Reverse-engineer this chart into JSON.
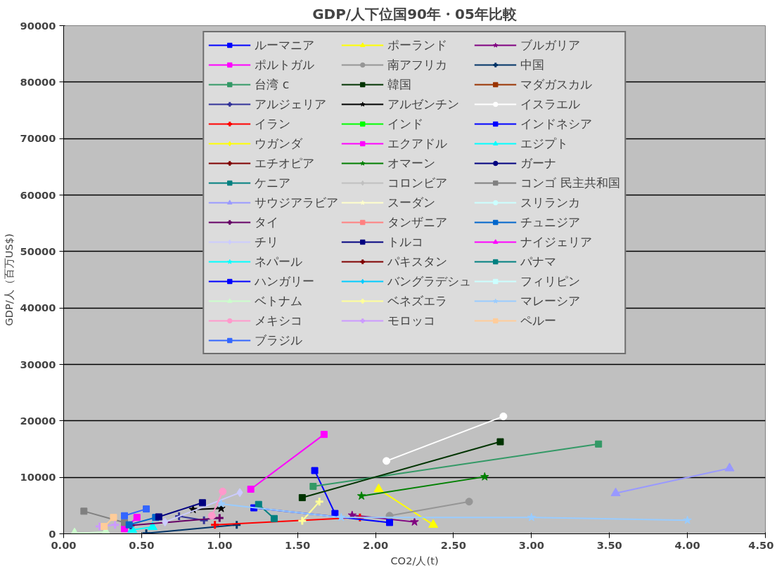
{
  "chart_data": {
    "type": "line",
    "title": "GDP/人下位国90年・05年比較",
    "xlabel": "CO2/人(t)",
    "ylabel": "GDP/人（百万US$)",
    "xlim": [
      0,
      4.5
    ],
    "ylim": [
      0,
      90000
    ],
    "xticks": [
      {
        "value": 0,
        "label": "0.00"
      },
      {
        "value": 0.5,
        "label": "0.50"
      },
      {
        "value": 1,
        "label": "1.00"
      },
      {
        "value": 1.5,
        "label": "1.50"
      },
      {
        "value": 2,
        "label": "2.00"
      },
      {
        "value": 2.5,
        "label": "2.50"
      },
      {
        "value": 3,
        "label": "3.00"
      },
      {
        "value": 3.5,
        "label": "3.50"
      },
      {
        "value": 4,
        "label": "4.00"
      },
      {
        "value": 4.5,
        "label": "4.50"
      }
    ],
    "yticks": [
      0,
      10000,
      20000,
      30000,
      40000,
      50000,
      60000,
      70000,
      80000,
      90000
    ],
    "grid": "y",
    "legend": "top",
    "series": [
      {
        "name": "ルーマニア",
        "color": "#0000ff",
        "marker": "square",
        "x": [
          1.61,
          1.74
        ],
        "values": [
          11200,
          3600
        ]
      },
      {
        "name": "ポーランド",
        "color": "#ffff00",
        "marker": "triangle",
        "x": [
          2.02,
          2.37
        ],
        "values": [
          7900,
          1600
        ]
      },
      {
        "name": "ブルガリア",
        "color": "#800080",
        "marker": "star",
        "x": [
          1.85,
          2.25
        ],
        "values": [
          3300,
          2100
        ]
      },
      {
        "name": "ポルトガル",
        "color": "#ff00ff",
        "marker": "square",
        "x": [
          1.2,
          1.67
        ],
        "values": [
          7900,
          17600
        ]
      },
      {
        "name": "南アフリカ",
        "color": "#969696",
        "marker": "circle",
        "x": [
          2.09,
          2.6
        ],
        "values": [
          3200,
          5700
        ]
      },
      {
        "name": "中国",
        "color": "#003366",
        "marker": "cross",
        "x": [
          0.53,
          1.11
        ],
        "values": [
          100,
          1600
        ]
      },
      {
        "name": "台湾 c",
        "color": "#339966",
        "marker": "square",
        "x": [
          1.6,
          3.43
        ],
        "values": [
          8400,
          15900
        ]
      },
      {
        "name": "韓国",
        "color": "#003300",
        "marker": "square",
        "x": [
          1.53,
          2.8
        ],
        "values": [
          6400,
          16300
        ]
      },
      {
        "name": "マダガスカル",
        "color": "#993300",
        "marker": "square",
        "x": [
          null,
          null
        ],
        "values": [
          null,
          null
        ]
      },
      {
        "name": "アルジェリア",
        "color": "#333399",
        "marker": "cross",
        "x": [
          0.74,
          0.9
        ],
        "values": [
          3100,
          2400
        ]
      },
      {
        "name": "アルゼンチン",
        "color": "#000000",
        "marker": "star",
        "x": [
          0.83,
          1.01
        ],
        "values": [
          4300,
          4500
        ]
      },
      {
        "name": "イスラエル",
        "color": "#ffffff",
        "marker": "circle",
        "x": [
          2.07,
          2.82
        ],
        "values": [
          12900,
          20800
        ]
      },
      {
        "name": "イラン",
        "color": "#ff0000",
        "marker": "cross",
        "x": [
          0.97,
          1.9
        ],
        "values": [
          1600,
          2900
        ]
      },
      {
        "name": "インド",
        "color": "#00ff00",
        "marker": "square",
        "x": [
          null,
          null
        ],
        "values": [
          null,
          null
        ]
      },
      {
        "name": "インドネシア",
        "color": "#0000ff",
        "marker": "square",
        "x": [
          1.22,
          2.09
        ],
        "values": [
          4600,
          2000
        ]
      },
      {
        "name": "ウガンダ",
        "color": "#ffff00",
        "marker": "diamond",
        "x": [
          null,
          null
        ],
        "values": [
          null,
          null
        ]
      },
      {
        "name": "エクアドル",
        "color": "#ff00ff",
        "marker": "square",
        "x": [
          0.39,
          0.47
        ],
        "values": [
          900,
          2900
        ]
      },
      {
        "name": "エジプト",
        "color": "#00ffff",
        "marker": "triangle",
        "x": [
          0.44,
          0.57
        ],
        "values": [
          700,
          1200
        ]
      },
      {
        "name": "エチオピア",
        "color": "#800000",
        "marker": "cross",
        "x": [
          null,
          null
        ],
        "values": [
          null,
          null
        ]
      },
      {
        "name": "オマーン",
        "color": "#008000",
        "marker": "star",
        "x": [
          1.91,
          2.7
        ],
        "values": [
          6700,
          10100
        ]
      },
      {
        "name": "ガーナ",
        "color": "#000080",
        "marker": "circle",
        "x": [
          null,
          null
        ],
        "values": [
          null,
          null
        ]
      },
      {
        "name": "ケニア",
        "color": "#008080",
        "marker": "square",
        "x": [
          null,
          null
        ],
        "values": [
          null,
          null
        ]
      },
      {
        "name": "コロンビア",
        "color": "#c0c0c0",
        "marker": "diamond",
        "x": [
          null,
          null
        ],
        "values": [
          null,
          null
        ]
      },
      {
        "name": "コンゴ 民主共和国",
        "color": "#808080",
        "marker": "square",
        "x": [
          0.13,
          0.39
        ],
        "values": [
          4000,
          2000
        ]
      },
      {
        "name": "サウジアラビア",
        "color": "#9999ff",
        "marker": "triangle",
        "x": [
          3.54,
          4.27
        ],
        "values": [
          7200,
          11600
        ]
      },
      {
        "name": "スーダン",
        "color": "#ffffcc",
        "marker": "star",
        "x": [
          null,
          null
        ],
        "values": [
          null,
          null
        ]
      },
      {
        "name": "スリランカ",
        "color": "#ccffff",
        "marker": "circle",
        "x": [
          null,
          null
        ],
        "values": [
          null,
          null
        ]
      },
      {
        "name": "タイ",
        "color": "#660066",
        "marker": "cross",
        "x": [
          0.43,
          1.0
        ],
        "values": [
          1500,
          2800
        ]
      },
      {
        "name": "タンザニア",
        "color": "#ff8080",
        "marker": "square",
        "x": [
          null,
          null
        ],
        "values": [
          null,
          null
        ]
      },
      {
        "name": "チュニジア",
        "color": "#0066cc",
        "marker": "square",
        "x": [
          0.42,
          0.59
        ],
        "values": [
          1600,
          2900
        ]
      },
      {
        "name": "チリ",
        "color": "#ccccff",
        "marker": "diamond",
        "x": [
          0.65,
          1.13
        ],
        "values": [
          2100,
          7300
        ]
      },
      {
        "name": "トルコ",
        "color": "#000080",
        "marker": "square",
        "x": [
          0.61,
          0.89
        ],
        "values": [
          3000,
          5500
        ]
      },
      {
        "name": "ナイジェリア",
        "color": "#ff00ff",
        "marker": "triangle",
        "x": [
          null,
          null
        ],
        "values": [
          null,
          null
        ]
      },
      {
        "name": "ネパール",
        "color": "#00ffff",
        "marker": "star",
        "x": [
          null,
          null
        ],
        "values": [
          null,
          null
        ]
      },
      {
        "name": "パキスタン",
        "color": "#800000",
        "marker": "cross",
        "x": [
          null,
          null
        ],
        "values": [
          null,
          null
        ]
      },
      {
        "name": "パナマ",
        "color": "#008080",
        "marker": "square",
        "x": [
          1.25,
          1.35
        ],
        "values": [
          5200,
          2700
        ]
      },
      {
        "name": "ハンガリー",
        "color": "#0000ff",
        "marker": "square",
        "x": [
          null,
          null
        ],
        "values": [
          null,
          null
        ]
      },
      {
        "name": "バングラデシュ",
        "color": "#00ccff",
        "marker": "diamond",
        "x": [
          null,
          null
        ],
        "values": [
          null,
          null
        ]
      },
      {
        "name": "フィリピン",
        "color": "#ccffff",
        "marker": "square",
        "x": [
          null,
          null
        ],
        "values": [
          null,
          null
        ]
      },
      {
        "name": "ベトナム",
        "color": "#ccffcc",
        "marker": "triangle",
        "x": [
          0.07,
          0.27
        ],
        "values": [
          100,
          300
        ]
      },
      {
        "name": "ベネズエラ",
        "color": "#ffff99",
        "marker": "cross",
        "x": [
          1.53,
          1.64
        ],
        "values": [
          2300,
          5700
        ]
      },
      {
        "name": "マレーシア",
        "color": "#99ccff",
        "marker": "star",
        "x": [
          1.01,
          1.78,
          3.0,
          4.0
        ],
        "values": [
          5300,
          2900,
          2900,
          2400
        ]
      },
      {
        "name": "メキシコ",
        "color": "#ff99cc",
        "marker": "circle",
        "x": [
          0.95,
          1.02
        ],
        "values": [
          3200,
          7500
        ]
      },
      {
        "name": "モロッコ",
        "color": "#cc99ff",
        "marker": "cross",
        "x": [
          0.23,
          0.33
        ],
        "values": [
          1300,
          1600
        ]
      },
      {
        "name": "ペルー",
        "color": "#ffcc99",
        "marker": "square",
        "x": [
          0.26,
          0.32
        ],
        "values": [
          1300,
          2900
        ]
      },
      {
        "name": "ブラジル",
        "color": "#3366ff",
        "marker": "square",
        "x": [
          0.39,
          0.53
        ],
        "values": [
          3200,
          4400
        ]
      }
    ]
  }
}
